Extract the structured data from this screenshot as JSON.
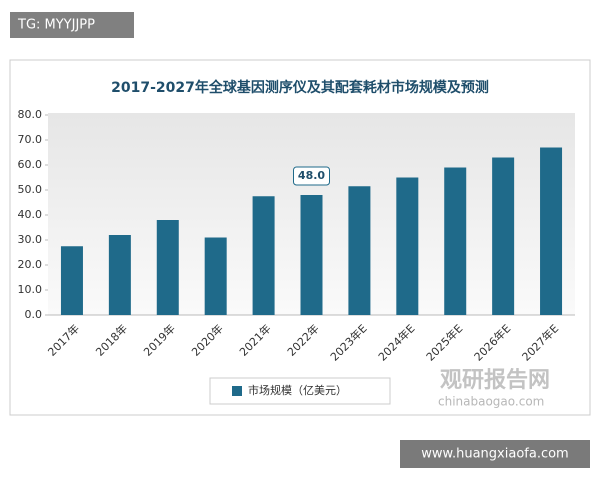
{
  "chart_data": {
    "type": "bar",
    "title": "2017-2027年全球基因测序仪及其配套耗材市场规模及预测",
    "categories": [
      "2017年",
      "2018年",
      "2019年",
      "2020年",
      "2021年",
      "2022年",
      "2023年E",
      "2024年E",
      "2025年E",
      "2026年E",
      "2027年E"
    ],
    "series": [
      {
        "name": "市场规模（亿美元）",
        "color": "#1f6a8a",
        "values": [
          27.5,
          32,
          38,
          31,
          47.5,
          48,
          51.5,
          55,
          59,
          63,
          67
        ],
        "value_labels": [
          null,
          null,
          null,
          null,
          null,
          "48.0",
          null,
          null,
          null,
          null,
          null
        ]
      }
    ],
    "ylim": [
      0,
      80
    ],
    "yticks": [
      {
        "value": 0,
        "label": "0.0"
      },
      {
        "value": 10,
        "label": "10.0"
      },
      {
        "value": 20,
        "label": "20.0"
      },
      {
        "value": 30,
        "label": "30.0"
      },
      {
        "value": 40,
        "label": "40.0"
      },
      {
        "value": 50,
        "label": "50.0"
      },
      {
        "value": 60,
        "label": "60.0"
      },
      {
        "value": 70,
        "label": "70.0"
      },
      {
        "value": 80,
        "label": "80.0"
      }
    ],
    "grid": false,
    "legend": "bottom"
  },
  "overlays": {
    "top_tag": "TG: MYYJJPP",
    "bottom_tag": "www.huangxiaofa.com",
    "watermark": "观研报告网",
    "watermark_url": "chinabaogao.com"
  }
}
